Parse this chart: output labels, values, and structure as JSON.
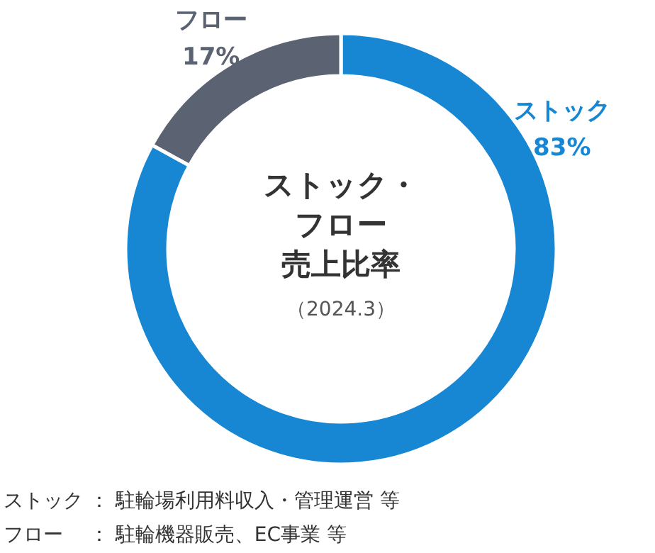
{
  "chart_data": {
    "type": "donut",
    "title": "ストック・フロー売上比率",
    "subtitle": "（2024.3）",
    "categories": [
      "ストック",
      "フロー"
    ],
    "values": [
      83,
      17
    ],
    "colors": [
      "#1787d4",
      "#5b6373"
    ],
    "value_labels": [
      "83%",
      "17%"
    ],
    "annotations": [
      "ストック ： 駐輪場利用料収入・管理運営 等",
      "フロー　 ： 駐輪機器販売、EC事業 等"
    ]
  }
}
